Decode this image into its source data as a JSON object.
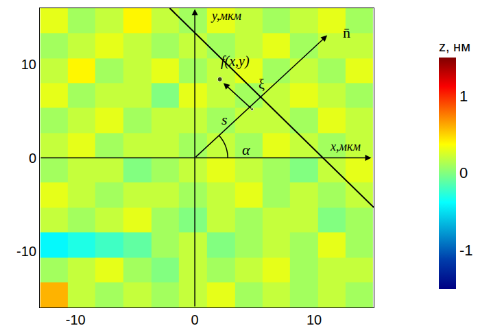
{
  "chart_data": {
    "type": "heatmap",
    "xlabel": "x,мкм",
    "ylabel": "y,мкм",
    "xlim": [
      -13,
      15
    ],
    "ylim": [
      -16,
      16
    ],
    "xticks": [
      -10,
      0,
      10
    ],
    "yticks": [
      -10,
      0,
      10
    ],
    "grid": false,
    "x": [
      -11.8,
      -9.5,
      -7.2,
      -4.8,
      -2.5,
      -0.2,
      2.2,
      4.5,
      6.8,
      9.2,
      11.5,
      13.8
    ],
    "y": [
      -14.7,
      -12,
      -9.3,
      -6.7,
      -4,
      -1.3,
      1.3,
      4,
      6.7,
      9.3,
      12,
      14.7
    ],
    "cells": [
      [
        0.6,
        0.2,
        0.1,
        0.2,
        0.1,
        0.2,
        0.3,
        0.1,
        0.2,
        0.1,
        0.2,
        0.1
      ],
      [
        0.1,
        0.2,
        0.3,
        0.1,
        0.0,
        0.2,
        0.1,
        0.2,
        0.3,
        0.1,
        0.2,
        0.2
      ],
      [
        -0.4,
        -0.3,
        -0.2,
        -0.1,
        0.1,
        0.2,
        0.0,
        0.1,
        0.2,
        0.1,
        0.3,
        0.1
      ],
      [
        0.2,
        0.1,
        0.2,
        0.3,
        0.1,
        0.0,
        0.2,
        0.1,
        0.2,
        0.2,
        0.0,
        0.1
      ],
      [
        0.3,
        0.2,
        0.1,
        0.2,
        0.2,
        0.1,
        0.2,
        0.3,
        0.1,
        0.2,
        0.1,
        0.2
      ],
      [
        0.1,
        0.2,
        0.2,
        0.0,
        0.1,
        0.2,
        0.3,
        0.2,
        0.1,
        0.0,
        0.2,
        0.3
      ],
      [
        0.2,
        0.3,
        0.1,
        0.2,
        0.2,
        0.1,
        0.2,
        0.1,
        0.3,
        0.2,
        0.1,
        0.2
      ],
      [
        0.1,
        0.2,
        0.3,
        0.1,
        0.2,
        0.2,
        0.1,
        0.2,
        0.2,
        0.1,
        0.3,
        0.2
      ],
      [
        0.3,
        0.1,
        0.2,
        0.2,
        0.0,
        0.3,
        0.2,
        0.1,
        0.2,
        0.3,
        0.2,
        0.1
      ],
      [
        0.2,
        0.4,
        0.1,
        0.2,
        0.3,
        0.1,
        0.2,
        0.3,
        0.1,
        0.2,
        0.1,
        0.3
      ],
      [
        0.1,
        0.2,
        0.3,
        0.2,
        0.1,
        0.2,
        0.1,
        0.2,
        0.3,
        0.1,
        0.2,
        0.2
      ],
      [
        0.3,
        0.1,
        0.2,
        0.4,
        0.2,
        0.1,
        0.3,
        0.2,
        0.1,
        0.2,
        0.3,
        0.1
      ]
    ],
    "colorbar": {
      "label": "z, нм",
      "range": [
        -1.5,
        1.5
      ],
      "ticks": [
        -1,
        0,
        1
      ]
    },
    "color": "jet",
    "annotations": [
      "f(x,y)",
      "ξ",
      "s",
      "α",
      "n̄"
    ]
  }
}
